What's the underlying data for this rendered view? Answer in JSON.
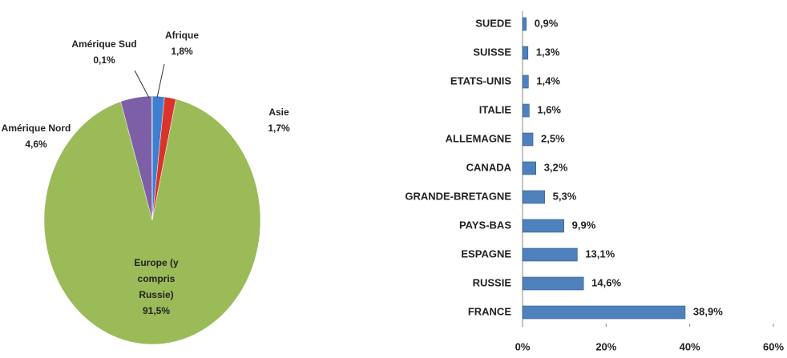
{
  "chart_data": [
    {
      "type": "pie",
      "categories": [
        "Afrique",
        "Asie",
        "Europe (y compris Russie)",
        "Amérique Nord",
        "Amérique Sud"
      ],
      "values": [
        1.8,
        1.7,
        91.5,
        4.6,
        0.1
      ],
      "value_labels": [
        "1,8%",
        "1,7%",
        "91,5%",
        "4,6%",
        "0,1%"
      ],
      "colors": [
        "#3f7fd0",
        "#d9342b",
        "#9bbb59",
        "#7d5fa8",
        "#2a5a9a"
      ]
    },
    {
      "type": "barh",
      "categories": [
        "SUEDE",
        "SUISSE",
        "ETATS-UNIS",
        "ITALIE",
        "ALLEMAGNE",
        "CANADA",
        "GRANDE-BRETAGNE",
        "PAYS-BAS",
        "ESPAGNE",
        "RUSSIE",
        "FRANCE"
      ],
      "values": [
        0.9,
        1.3,
        1.4,
        1.6,
        2.5,
        3.2,
        5.3,
        9.9,
        13.1,
        14.6,
        38.9
      ],
      "value_labels": [
        "0,9%",
        "1,3%",
        "1,4%",
        "1,6%",
        "2,5%",
        "3,2%",
        "5,3%",
        "9,9%",
        "13,1%",
        "14,6%",
        "38,9%"
      ],
      "color": "#4f81bd",
      "xlim": [
        0,
        60
      ],
      "xticks": [
        {
          "value": 0,
          "label": "0%"
        },
        {
          "value": 20,
          "label": "20%"
        },
        {
          "value": 40,
          "label": "40%"
        },
        {
          "value": 60,
          "label": "60%"
        }
      ]
    }
  ]
}
